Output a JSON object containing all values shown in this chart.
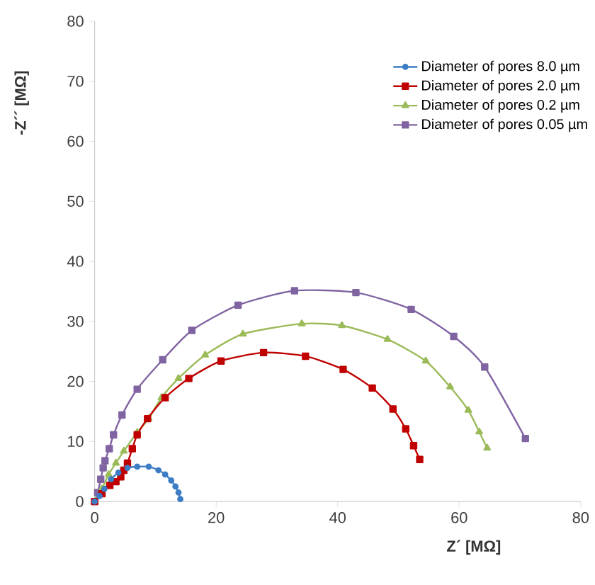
{
  "chart_data": {
    "type": "line",
    "xlabel": "Z´ [MΩ]",
    "ylabel": "-Z´´ [MΩ]",
    "xlim": [
      0,
      80
    ],
    "ylim": [
      0,
      80
    ],
    "xticks": [
      0,
      20,
      40,
      60,
      80
    ],
    "yticks": [
      0,
      10,
      20,
      30,
      40,
      50,
      60,
      70,
      80
    ],
    "grid": false,
    "legend": "top right",
    "line_style": "solid",
    "series": [
      {
        "name": "Diameter of pores 8.0 µm",
        "color": "#3c7dc4",
        "marker": "circle",
        "x": [
          0,
          0.8,
          1.6,
          2.7,
          3.9,
          5.4,
          7.0,
          8.9,
          10.5,
          11.6,
          12.6,
          13.3,
          13.8,
          14.1
        ],
        "values": [
          0,
          0.9,
          2.1,
          3.7,
          4.8,
          5.6,
          5.8,
          5.8,
          5.2,
          4.5,
          3.5,
          2.5,
          1.5,
          0.4
        ]
      },
      {
        "name": "Diameter of pores 2.0 µm",
        "color": "#c00000",
        "marker": "square",
        "x": [
          0,
          1.2,
          2.5,
          3.5,
          4.3,
          4.8,
          5.4,
          6.2,
          7.0,
          8.7,
          11.6,
          15.5,
          20.8,
          27.8,
          34.7,
          40.9,
          45.7,
          49.1,
          51.2,
          52.5,
          53.5
        ],
        "values": [
          0,
          1.3,
          2.7,
          3.3,
          4.1,
          5.2,
          6.4,
          8.8,
          11.1,
          13.8,
          17.3,
          20.5,
          23.4,
          24.8,
          24.2,
          22.0,
          18.9,
          15.4,
          12.1,
          9.3,
          7.0
        ]
      },
      {
        "name": "Diameter of pores 0.2 µm",
        "color": "#9bbb59",
        "marker": "triangle",
        "x": [
          0,
          1.2,
          2.3,
          3.5,
          4.8,
          7.0,
          8.9,
          11.0,
          13.8,
          18.2,
          24.4,
          34.1,
          40.7,
          48.2,
          54.5,
          58.5,
          61.5,
          63.3,
          64.6
        ],
        "values": [
          0,
          2.1,
          4.5,
          6.4,
          8.4,
          11.5,
          13.8,
          17.3,
          20.5,
          24.4,
          27.9,
          29.6,
          29.3,
          27.0,
          23.4,
          19.1,
          15.2,
          11.6,
          8.9
        ]
      },
      {
        "name": "Diameter of pores 0.05 µm",
        "color": "#8064a2",
        "marker": "square",
        "x": [
          0,
          0.5,
          1.0,
          1.4,
          1.7,
          2.4,
          3.1,
          4.5,
          7.0,
          11.2,
          16.0,
          23.6,
          32.9,
          43.0,
          52.1,
          59.1,
          64.2,
          70.9
        ],
        "values": [
          0,
          1.5,
          3.7,
          5.6,
          6.8,
          8.8,
          11.1,
          14.4,
          18.7,
          23.6,
          28.5,
          32.7,
          35.1,
          34.8,
          32.0,
          27.5,
          22.4,
          10.5
        ]
      }
    ]
  }
}
